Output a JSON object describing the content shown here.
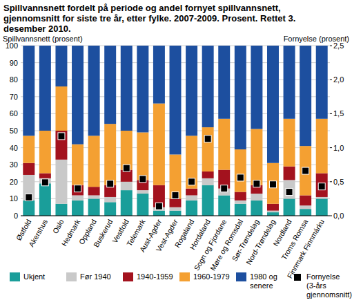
{
  "chart_data": {
    "type": "bar",
    "stacked": true,
    "grid": true,
    "title": "Spillvannsnett fordelt på periode og andel fornyet spillvannsnett, gjennomsnitt for siste tre år, etter fylke. 2007-2009. Prosent. Rettet 3. desember 2010.",
    "y_label": "Spillvannsnett (prosent)",
    "y2_label": "Fornyelse (prosent)",
    "categories": [
      "Østfold",
      "Akershus",
      "Oslo",
      "Hedmark",
      "Oppland",
      "Buskerud",
      "Vestfold",
      "Telemark",
      "Aust-Agder",
      "Vest-Agder",
      "Rogaland",
      "Hordaland",
      "Sogn og Fjordane",
      "Møre og Romsdal",
      "Sør-Trøndelag",
      "Nord-Trøndelag",
      "Nordland",
      "Troms Romsa",
      "Finnmark Finnmárku"
    ],
    "ylim": [
      0,
      100
    ],
    "yticks": [
      0,
      10,
      20,
      30,
      40,
      50,
      60,
      70,
      80,
      90,
      100
    ],
    "y2lim": [
      0,
      2.5
    ],
    "y2ticks": [
      {
        "value": 0,
        "label": "0,0"
      },
      {
        "value": 0.5,
        "label": "0,5"
      },
      {
        "value": 1,
        "label": "1,0"
      },
      {
        "value": 1.5,
        "label": "1,5"
      },
      {
        "value": 2,
        "label": "2,0"
      },
      {
        "value": 2.5,
        "label": "2,5"
      }
    ],
    "legend": "bottom",
    "series": [
      {
        "name": "Ukjent",
        "color": "#1a9e9a",
        "values": [
          9,
          19,
          7,
          9,
          10,
          8,
          15,
          13,
          3,
          3,
          9,
          18,
          12,
          7,
          9,
          2,
          10,
          4,
          10
        ]
      },
      {
        "name": "Før 1940",
        "color": "#c9c9c9",
        "values": [
          15,
          3,
          26,
          3,
          2,
          3,
          5,
          2,
          2,
          2,
          3,
          4,
          4,
          2,
          4,
          1,
          11,
          2,
          1
        ]
      },
      {
        "name": "1940-1959",
        "color": "#a3121e",
        "values": [
          7,
          3,
          17,
          6,
          5,
          7,
          7,
          6,
          13,
          5,
          4,
          4,
          11,
          5,
          5,
          4,
          8,
          6,
          14
        ]
      },
      {
        "name": "1960-1979",
        "color": "#f4a032",
        "values": [
          16,
          25,
          26,
          24,
          30,
          36,
          23,
          28,
          48,
          26,
          31,
          26,
          30,
          25,
          33,
          24,
          28,
          29,
          32
        ]
      },
      {
        "name": "1980 og senere",
        "color": "#1d4f9f",
        "values": [
          53,
          50,
          24,
          58,
          53,
          46,
          50,
          51,
          34,
          64,
          53,
          48,
          43,
          61,
          49,
          69,
          43,
          59,
          43
        ]
      },
      {
        "name": "Fornyelse (3-års gjennomsnitt)",
        "color": "#000000",
        "type": "scatter",
        "marker": "square",
        "axis": "y2",
        "values": [
          0.27,
          0.49,
          1.17,
          0.4,
          null,
          0.47,
          0.7,
          0.54,
          0.14,
          0.3,
          0.5,
          1.13,
          0.4,
          0.56,
          0.47,
          0.46,
          0.35,
          0.66,
          0.43
        ]
      }
    ]
  }
}
